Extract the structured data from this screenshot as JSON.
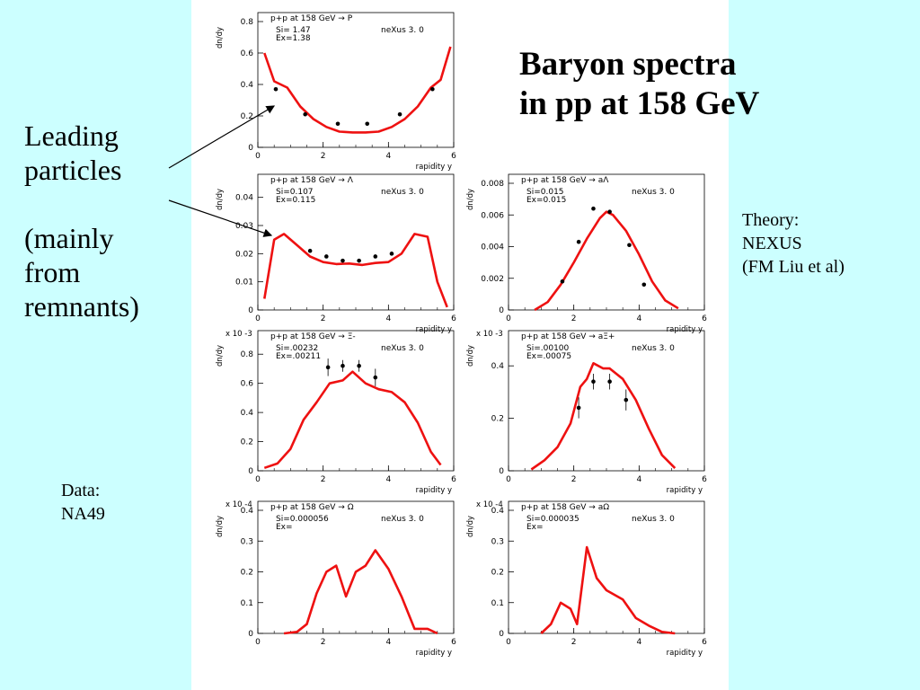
{
  "slide": {
    "title_line1": "Baryon spectra",
    "title_line2": "in pp at 158 GeV",
    "left_lines": [
      "Leading",
      "particles",
      "",
      "(mainly",
      "from",
      "remnants)"
    ],
    "theory_lines": [
      "Theory:",
      "NEXUS",
      "(FM Liu et al)"
    ],
    "data_lines": [
      "Data:",
      "NA49"
    ]
  },
  "colors": {
    "background": "#ccffff",
    "panel": "#ffffff",
    "theory": "#ee1111",
    "data": "#000000"
  },
  "chart_data": [
    {
      "type": "line",
      "title": "p+p at 158 GeV → P",
      "model": "neXus 3. 0",
      "stats": [
        "Si= 1.47",
        "Ex=1.38"
      ],
      "xlabel": "rapidity y",
      "ylabel": "dn/dy",
      "scale_label": "",
      "xlim": [
        0,
        6
      ],
      "ylim": [
        0,
        0.8
      ],
      "xticks": [
        "0",
        "2",
        "4",
        "6"
      ],
      "yticks": [
        "0",
        "0.2",
        "0.4",
        "0.6",
        "0.8"
      ],
      "theory": {
        "x": [
          0.2,
          0.5,
          0.9,
          1.3,
          1.7,
          2.1,
          2.5,
          2.9,
          3.3,
          3.7,
          4.1,
          4.5,
          4.9,
          5.3,
          5.6,
          5.9
        ],
        "y": [
          0.6,
          0.42,
          0.38,
          0.26,
          0.18,
          0.13,
          0.1,
          0.095,
          0.095,
          0.1,
          0.13,
          0.18,
          0.26,
          0.38,
          0.43,
          0.64
        ]
      },
      "data": {
        "x": [
          0.55,
          1.45,
          2.45,
          3.35,
          4.35,
          5.35
        ],
        "y": [
          0.37,
          0.21,
          0.15,
          0.15,
          0.21,
          0.37
        ]
      }
    },
    {
      "type": "line",
      "title": "p+p at 158 GeV → Λ",
      "model": "neXus 3. 0",
      "stats": [
        "Si=0.107",
        "Ex=0.115"
      ],
      "xlabel": "rapidity y",
      "ylabel": "dn/dy",
      "scale_label": "",
      "xlim": [
        0,
        6
      ],
      "ylim": [
        0,
        0.045
      ],
      "xticks": [
        "0",
        "2",
        "4",
        "6"
      ],
      "yticks": [
        "0",
        "0.01",
        "0.02",
        "0.03",
        "0.04"
      ],
      "theory": {
        "x": [
          0.2,
          0.5,
          0.8,
          1.2,
          1.6,
          2.0,
          2.4,
          2.8,
          3.2,
          3.6,
          4.0,
          4.4,
          4.8,
          5.2,
          5.5,
          5.8
        ],
        "y": [
          0.004,
          0.025,
          0.027,
          0.023,
          0.019,
          0.017,
          0.0163,
          0.0165,
          0.016,
          0.0167,
          0.017,
          0.02,
          0.027,
          0.026,
          0.01,
          0.001
        ]
      },
      "data": {
        "x": [
          1.6,
          2.1,
          2.6,
          3.1,
          3.6,
          4.1
        ],
        "y": [
          0.021,
          0.019,
          0.0175,
          0.0175,
          0.019,
          0.02
        ]
      }
    },
    {
      "type": "line",
      "title": "p+p at 158 GeV → aΛ",
      "model": "neXus 3. 0",
      "stats": [
        "Si=0.015",
        "Ex=0.015"
      ],
      "xlabel": "rapidity y",
      "ylabel": "dn/dy",
      "scale_label": "",
      "xlim": [
        0,
        6
      ],
      "ylim": [
        0,
        0.008
      ],
      "xticks": [
        "0",
        "2",
        "4",
        "6"
      ],
      "yticks": [
        "0",
        "0.002",
        "0.004",
        "0.006",
        "0.008"
      ],
      "theory": {
        "x": [
          0.8,
          1.2,
          1.6,
          2.0,
          2.4,
          2.8,
          3.0,
          3.2,
          3.6,
          4.0,
          4.4,
          4.8,
          5.2
        ],
        "y": [
          0,
          0.0005,
          0.0016,
          0.003,
          0.0045,
          0.0058,
          0.0062,
          0.006,
          0.005,
          0.0035,
          0.0018,
          0.0006,
          0.0001
        ]
      },
      "data": {
        "x": [
          1.65,
          2.15,
          2.6,
          3.1,
          3.7,
          4.15
        ],
        "y": [
          0.0018,
          0.0043,
          0.0064,
          0.0062,
          0.0041,
          0.0016
        ]
      }
    },
    {
      "type": "line",
      "title": "p+p at 158 GeV → Ξ-",
      "model": "neXus 3. 0",
      "stats": [
        "Si=.00232",
        "Ex=.00211"
      ],
      "xlabel": "rapidity y",
      "ylabel": "dn/dy",
      "scale_label": "x 10 -3",
      "xlim": [
        0,
        6
      ],
      "ylim": [
        0,
        0.9
      ],
      "xticks": [
        "0",
        "2",
        "4",
        "6"
      ],
      "yticks": [
        "0",
        "0.2",
        "0.4",
        "0.6",
        "0.8"
      ],
      "theory": {
        "x": [
          0.2,
          0.6,
          1.0,
          1.4,
          1.8,
          2.2,
          2.6,
          2.9,
          3.3,
          3.7,
          4.1,
          4.5,
          4.9,
          5.3,
          5.6
        ],
        "y": [
          0.02,
          0.05,
          0.15,
          0.35,
          0.47,
          0.6,
          0.62,
          0.68,
          0.6,
          0.56,
          0.54,
          0.47,
          0.33,
          0.13,
          0.04
        ]
      },
      "data": {
        "x": [
          2.15,
          2.6,
          3.1,
          3.6
        ],
        "y": [
          0.71,
          0.72,
          0.72,
          0.64
        ],
        "err": [
          0.06,
          0.04,
          0.04,
          0.06
        ]
      }
    },
    {
      "type": "line",
      "title": "p+p at 158 GeV → aΞ+",
      "model": "neXus 3. 0",
      "stats": [
        "Si=.00100",
        "Ex=.00075"
      ],
      "xlabel": "rapidity y",
      "ylabel": "dn/dy",
      "scale_label": "x 10 -3",
      "xlim": [
        0,
        6
      ],
      "ylim": [
        0,
        0.5
      ],
      "xticks": [
        "0",
        "2",
        "4",
        "6"
      ],
      "yticks": [
        "0",
        "0.2",
        "0.4"
      ],
      "theory": {
        "x": [
          0.7,
          1.1,
          1.5,
          1.9,
          2.2,
          2.4,
          2.6,
          2.9,
          3.1,
          3.5,
          3.9,
          4.3,
          4.7,
          5.1
        ],
        "y": [
          0.005,
          0.04,
          0.09,
          0.18,
          0.32,
          0.35,
          0.41,
          0.39,
          0.39,
          0.35,
          0.27,
          0.16,
          0.06,
          0.01
        ]
      },
      "data": {
        "x": [
          2.15,
          2.6,
          3.1,
          3.6
        ],
        "y": [
          0.24,
          0.34,
          0.34,
          0.27
        ],
        "err": [
          0.04,
          0.03,
          0.03,
          0.04
        ]
      }
    },
    {
      "type": "line",
      "title": "p+p at 158 GeV → Ω",
      "model": "neXus 3. 0",
      "stats": [
        "Si=0.000056",
        "Ex="
      ],
      "xlabel": "rapidity y",
      "ylabel": "dn/dy",
      "scale_label": "x 10 -4",
      "xlim": [
        0,
        6
      ],
      "ylim": [
        0,
        0.4
      ],
      "xticks": [
        "0",
        "2",
        "4",
        "6"
      ],
      "yticks": [
        "0",
        "0.1",
        "0.2",
        "0.3",
        "0.4"
      ],
      "theory": {
        "x": [
          0.8,
          1.2,
          1.5,
          1.8,
          2.1,
          2.4,
          2.7,
          3.0,
          3.3,
          3.6,
          4.0,
          4.4,
          4.8,
          5.2,
          5.5
        ],
        "y": [
          0,
          0.005,
          0.03,
          0.13,
          0.2,
          0.22,
          0.12,
          0.2,
          0.22,
          0.27,
          0.21,
          0.12,
          0.015,
          0.015,
          0
        ]
      },
      "data": {
        "x": [],
        "y": []
      }
    },
    {
      "type": "line",
      "title": "p+p at 158 GeV → aΩ",
      "model": "neXus 3. 0",
      "stats": [
        "Si=0.000035",
        "Ex="
      ],
      "xlabel": "rapidity y",
      "ylabel": "dn/dy",
      "scale_label": "x 10 -4",
      "xlim": [
        0,
        6
      ],
      "ylim": [
        0,
        0.4
      ],
      "xticks": [
        "0",
        "2",
        "4",
        "6"
      ],
      "yticks": [
        "0",
        "0.1",
        "0.2",
        "0.3",
        "0.4"
      ],
      "theory": {
        "x": [
          1.0,
          1.3,
          1.6,
          1.9,
          2.1,
          2.4,
          2.7,
          3.0,
          3.5,
          3.9,
          4.3,
          4.7,
          5.1
        ],
        "y": [
          0,
          0.03,
          0.1,
          0.08,
          0.03,
          0.28,
          0.18,
          0.14,
          0.11,
          0.05,
          0.025,
          0.005,
          0
        ]
      },
      "data": {
        "x": [],
        "y": []
      }
    }
  ]
}
